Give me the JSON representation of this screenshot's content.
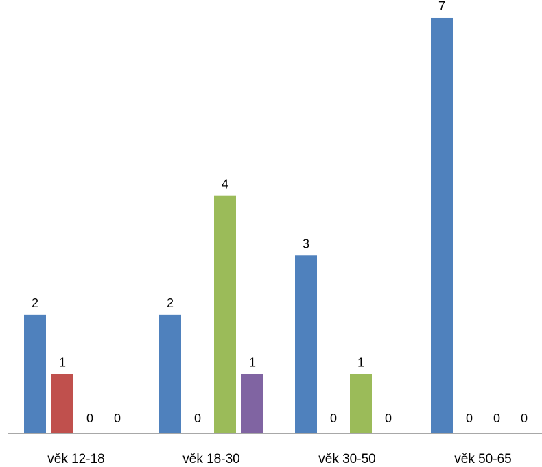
{
  "chart_data": {
    "type": "bar",
    "categories": [
      "věk 12-18",
      "věk 18-30",
      "věk 30-50",
      "věk 50-65"
    ],
    "series": [
      {
        "values": [
          2,
          2,
          3,
          7
        ],
        "color": "#4f81bd"
      },
      {
        "values": [
          1,
          0,
          0,
          0
        ],
        "color": "#c0504d"
      },
      {
        "values": [
          0,
          4,
          1,
          0
        ],
        "color": "#9bbb59"
      },
      {
        "values": [
          0,
          1,
          0,
          0
        ],
        "color": "#8064a2"
      }
    ],
    "ylim": [
      0,
      7.3
    ],
    "grid": false,
    "legend": "none",
    "data_labels": true
  }
}
